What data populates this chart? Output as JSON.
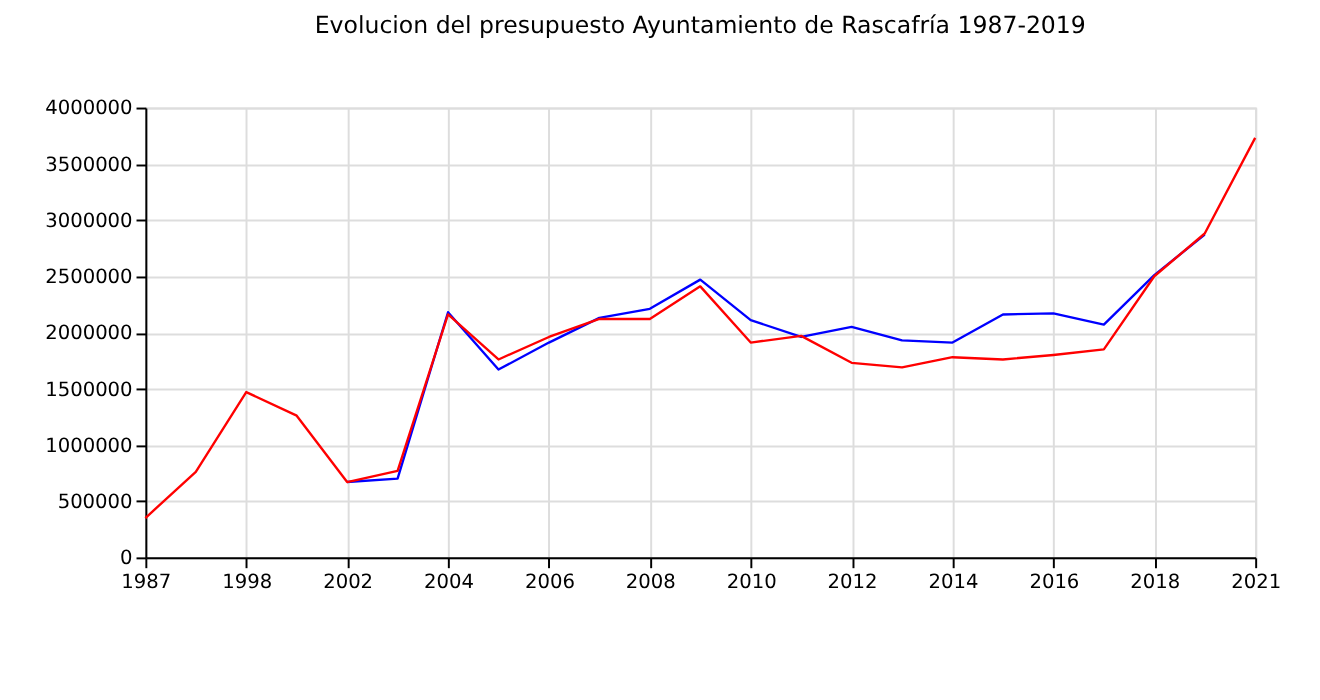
{
  "chart_data": {
    "type": "line",
    "title": "Evolucion del presupuesto Ayuntamiento de Rascafría 1987-2019",
    "categories": [
      "1987",
      null,
      "1998",
      null,
      "2002",
      null,
      "2004",
      null,
      "2006",
      null,
      "2008",
      null,
      "2010",
      null,
      "2012",
      null,
      "2014",
      null,
      "2016",
      null,
      "2018",
      null,
      "2021"
    ],
    "series": [
      {
        "color": "#0000ff",
        "values": [
          null,
          null,
          null,
          null,
          670000,
          700000,
          2180000,
          1670000,
          1910000,
          2130000,
          2210000,
          2470000,
          2110000,
          1960000,
          2050000,
          1930000,
          1910000,
          2160000,
          2170000,
          2070000,
          2510000,
          2870000,
          null
        ]
      },
      {
        "color": "#ff0000",
        "values": [
          350000,
          760000,
          1470000,
          1260000,
          670000,
          770000,
          2160000,
          1760000,
          1960000,
          2120000,
          2120000,
          2410000,
          1910000,
          1970000,
          1730000,
          1690000,
          1780000,
          1760000,
          1800000,
          1850000,
          2500000,
          2880000,
          3730000
        ]
      }
    ],
    "ylim": [
      0,
      4000000
    ],
    "yticks": [
      0,
      500000,
      1000000,
      1500000,
      2000000,
      2500000,
      3000000,
      3500000,
      4000000
    ],
    "grid": true
  }
}
